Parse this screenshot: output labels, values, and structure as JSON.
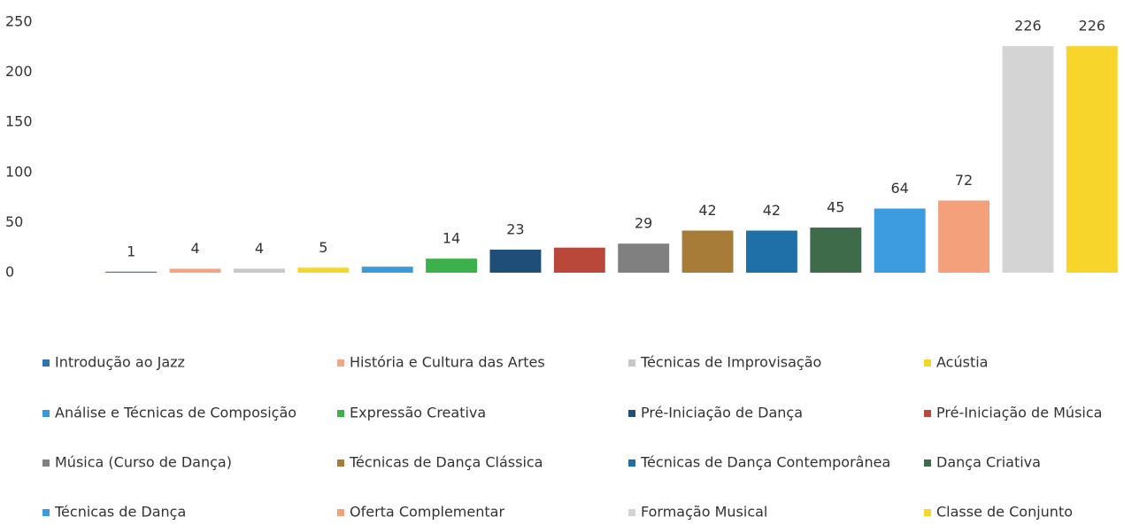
{
  "chart_data": {
    "type": "bar",
    "categories": [
      "Introdução ao Jazz",
      "História e Cultura das Artes",
      "Técnicas de Improvisação",
      "Acústia",
      "Análise e Técnicas de Composição",
      "Expressão Creativa",
      "Pré-Iniciação de Dança",
      "Pré-Iniciação de Música",
      "Música (Curso de Dança)",
      "Técnicas de Dança Clássica",
      "Técnicas de Dança Contemporânea",
      "Dança Criativa",
      "Técnicas de Dança",
      "Oferta Complementar",
      "Formação Musical",
      "Classe de Conjunto"
    ],
    "values": [
      1,
      4,
      4,
      5,
      6,
      14,
      23,
      25,
      29,
      42,
      42,
      45,
      64,
      72,
      226,
      226
    ],
    "value_labels": [
      "1",
      "4",
      "4",
      "5",
      null,
      "14",
      "23",
      null,
      "29",
      "42",
      "42",
      "45",
      "64",
      "72",
      "226",
      "226"
    ],
    "colors": [
      "#2e75b6",
      "#f4a582",
      "#c8c8c8",
      "#f5d72a",
      "#3a9ad9",
      "#3cb04a",
      "#1f4e79",
      "#b9473a",
      "#808080",
      "#a67c38",
      "#1f6fa8",
      "#3e6b4a",
      "#3d9be0",
      "#f4a07a",
      "#d4d4d4",
      "#f7d52b"
    ],
    "ylim": [
      0,
      250
    ],
    "yticks": [
      0,
      50,
      100,
      150,
      200,
      250
    ],
    "grid": false
  }
}
